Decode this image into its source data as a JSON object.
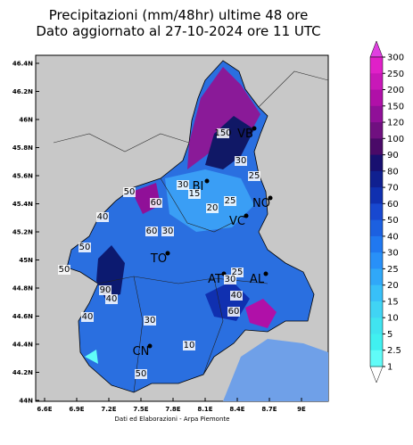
{
  "header": {
    "lines": [
      "Precipitazioni (mm/48hr) ultime 48 ore",
      "Dato aggiornato al 27-10-2024 ore 11 UTC"
    ]
  },
  "map": {
    "lat_ticks": [
      "46.4N",
      "46.2N",
      "46N",
      "45.8N",
      "45.6N",
      "45.4N",
      "45.2N",
      "45N",
      "44.8N",
      "44.6N",
      "44.4N",
      "44.2N",
      "44N"
    ],
    "lon_ticks": [
      "6.6E",
      "6.9E",
      "7.2E",
      "7.5E",
      "7.8E",
      "8.1E",
      "8.4E",
      "8.7E",
      "9E"
    ],
    "cities": [
      "VB",
      "NO",
      "VC",
      "BI",
      "TO",
      "AT",
      "AL",
      "CN"
    ],
    "contour_labels": [
      "150",
      "30",
      "25",
      "50",
      "60",
      "30",
      "15",
      "25",
      "20",
      "50",
      "40",
      "60",
      "30",
      "50",
      "90",
      "40",
      "30",
      "40",
      "50",
      "25",
      "30",
      "40",
      "60",
      "10"
    ]
  },
  "colorbar": {
    "levels": [
      "300",
      "250",
      "200",
      "150",
      "120",
      "100",
      "90",
      "80",
      "70",
      "60",
      "50",
      "40",
      "30",
      "25",
      "20",
      "15",
      "10",
      "5",
      "2.5",
      "1"
    ],
    "colors": [
      "#e020c8",
      "#c818b8",
      "#b010a8",
      "#901098",
      "#701080",
      "#4a0a68",
      "#181070",
      "#102090",
      "#1030b0",
      "#1848d0",
      "#1c60e0",
      "#2078f0",
      "#2890f8",
      "#30a8f8",
      "#38c0f8",
      "#40d4f4",
      "#40e4f0",
      "#40f0f0",
      "#60fcf8"
    ]
  },
  "footer": "Dati ed Elaborazioni - Arpa Piemonte"
}
